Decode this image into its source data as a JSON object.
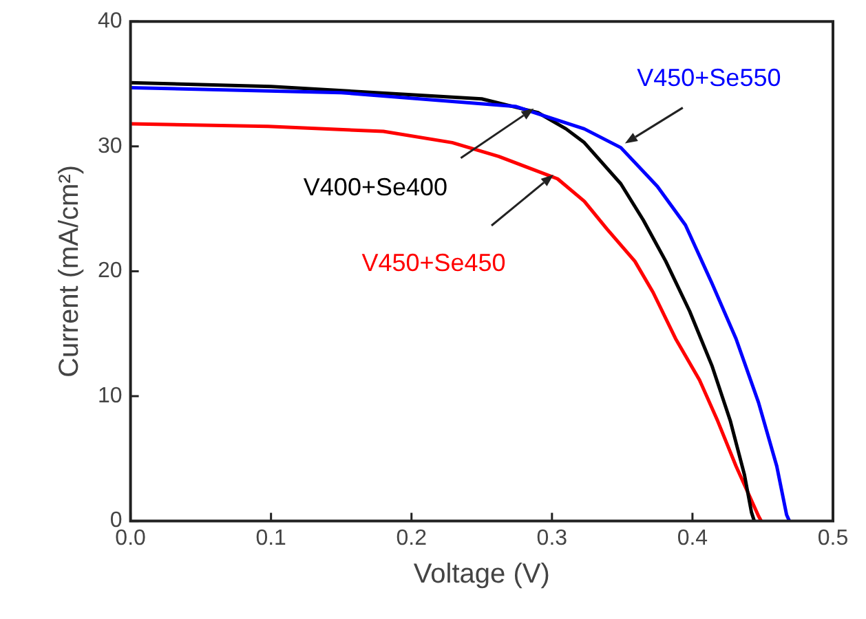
{
  "chart_data": {
    "type": "line",
    "xlabel": "Voltage (V)",
    "ylabel": "Current (mA/cm²)",
    "xlim": [
      0,
      0.5
    ],
    "ylim": [
      0,
      40
    ],
    "xticks": [
      {
        "value": 0,
        "label": "0.0"
      },
      {
        "value": 0.1,
        "label": "0.1"
      },
      {
        "value": 0.2,
        "label": "0.2"
      },
      {
        "value": 0.3,
        "label": "0.3"
      },
      {
        "value": 0.4,
        "label": "0.4"
      },
      {
        "value": 0.5,
        "label": "0.5"
      }
    ],
    "yticks": [
      0,
      10,
      20,
      30,
      40
    ],
    "grid": false,
    "legend": false,
    "marker": "none",
    "line_style": "solid",
    "series": [
      {
        "name": "V450+Se550",
        "color": "#0000ff",
        "x": [
          0,
          0.15,
          0.274,
          0.323,
          0.349,
          0.375,
          0.395,
          0.414,
          0.431,
          0.447,
          0.46,
          0.467,
          0.469
        ],
        "values": [
          34.7,
          34.3,
          33.2,
          31.4,
          29.9,
          26.8,
          23.7,
          19.0,
          14.6,
          9.5,
          4.4,
          0.5,
          0
        ]
      },
      {
        "name": "V400+Se400",
        "color": "#000000",
        "x": [
          0,
          0.1,
          0.25,
          0.29,
          0.31,
          0.323,
          0.349,
          0.365,
          0.381,
          0.398,
          0.414,
          0.427,
          0.437,
          0.442,
          0.444
        ],
        "values": [
          35.1,
          34.8,
          33.8,
          32.7,
          31.4,
          30.3,
          27.0,
          24.1,
          20.8,
          16.8,
          12.4,
          8.0,
          3.7,
          0.7,
          0
        ]
      },
      {
        "name": "V450+Se450",
        "color": "#ff0000",
        "x": [
          0,
          0.098,
          0.18,
          0.229,
          0.262,
          0.304,
          0.323,
          0.339,
          0.359,
          0.372,
          0.388,
          0.405,
          0.418,
          0.431,
          0.447,
          0.449
        ],
        "values": [
          31.8,
          31.6,
          31.2,
          30.3,
          29.2,
          27.4,
          25.6,
          23.4,
          20.8,
          18.3,
          14.6,
          11.3,
          8.0,
          4.4,
          0.4,
          0
        ]
      }
    ]
  }
}
